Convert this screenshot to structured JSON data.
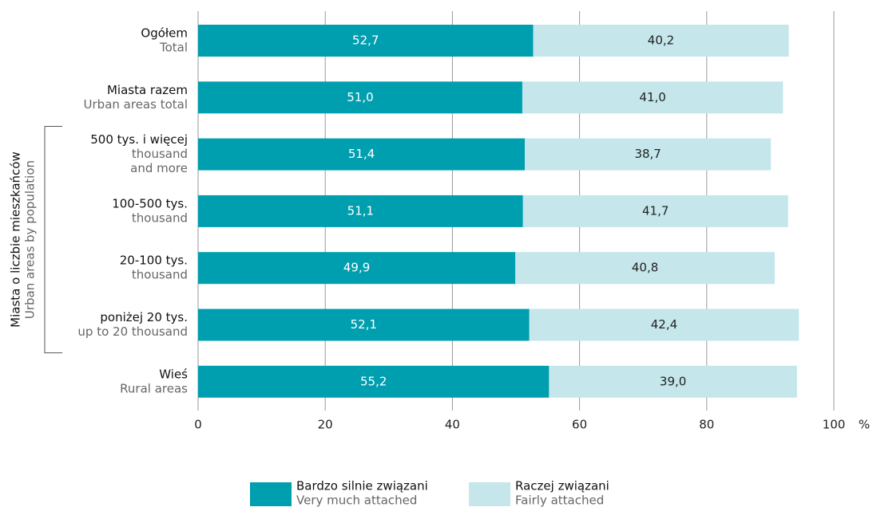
{
  "chart_data": {
    "type": "stacked-bar-horizontal",
    "categories": [
      [
        "Ogółem",
        "Total"
      ],
      [
        "Miasta razem",
        "Urban areas total"
      ],
      [
        "500 tys. i więcej",
        "thousand",
        "and more"
      ],
      [
        "100-500 tys.",
        "thousand"
      ],
      [
        "20-100 tys.",
        "thousand"
      ],
      [
        "poniżej 20 tys.",
        "up to 20 thousand"
      ],
      [
        "Wieś",
        "Rural areas"
      ]
    ],
    "group_label": [
      "Miasta o liczbie mieszkańców",
      "Urban areas by population"
    ],
    "series": [
      {
        "name": "Bardzo silnie związani",
        "name_en": "Very much attached",
        "color": "#009faf",
        "values": [
          52.7,
          51.0,
          51.4,
          51.1,
          49.9,
          52.1,
          55.2
        ],
        "value_labels": [
          "52,7",
          "51,0",
          "51,4",
          "51,1",
          "49,9",
          "52,1",
          "55,2"
        ]
      },
      {
        "name": "Raczej związani",
        "name_en": "Fairly attached",
        "color": "#c5e6ea",
        "values": [
          40.2,
          41.0,
          38.7,
          41.7,
          40.8,
          42.4,
          39.0
        ],
        "value_labels": [
          "40,2",
          "41,0",
          "38,7",
          "41,7",
          "40,8",
          "42,4",
          "39,0"
        ]
      }
    ],
    "xlim": [
      0,
      100
    ],
    "xticks": [
      0,
      20,
      40,
      60,
      80,
      100
    ],
    "x_unit": "%",
    "grid": true
  }
}
